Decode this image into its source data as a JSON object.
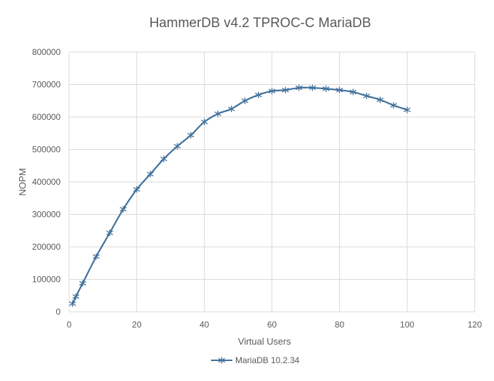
{
  "chart_data": {
    "type": "line",
    "title": "HammerDB v4.2 TPROC-C MariaDB",
    "xlabel": "Virtual Users",
    "ylabel": "NOPM",
    "xlim": [
      0,
      120
    ],
    "ylim": [
      0,
      800000
    ],
    "xticks": [
      "0",
      "20",
      "40",
      "60",
      "80",
      "100",
      "120"
    ],
    "yticks": [
      "0",
      "100000",
      "200000",
      "300000",
      "400000",
      "500000",
      "600000",
      "700000",
      "800000"
    ],
    "grid": true,
    "legend_position": "bottom",
    "series": [
      {
        "name": "MariaDB 10.2.34",
        "color": "#41719c",
        "marker": "asterisk",
        "x": [
          1,
          2,
          4,
          8,
          12,
          16,
          20,
          24,
          28,
          32,
          36,
          40,
          44,
          48,
          52,
          56,
          60,
          64,
          68,
          72,
          76,
          80,
          84,
          88,
          92,
          96,
          100
        ],
        "y": [
          25000,
          47000,
          88000,
          170000,
          243000,
          316000,
          377000,
          424000,
          471000,
          510000,
          544000,
          585000,
          610000,
          625000,
          650000,
          668000,
          680000,
          683000,
          690000,
          690000,
          687000,
          683000,
          677000,
          665000,
          653000,
          636000,
          622000
        ]
      }
    ]
  }
}
